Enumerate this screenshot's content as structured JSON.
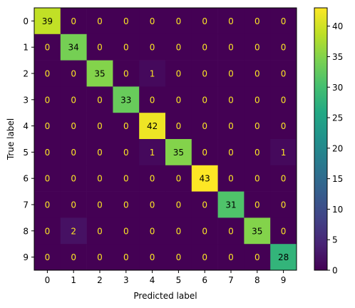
{
  "chart_data": {
    "type": "heatmap",
    "title": "",
    "xlabel": "Predicted label",
    "ylabel": "True label",
    "x_categories": [
      "0",
      "1",
      "2",
      "3",
      "4",
      "5",
      "6",
      "7",
      "8",
      "9"
    ],
    "y_categories": [
      "0",
      "1",
      "2",
      "3",
      "4",
      "5",
      "6",
      "7",
      "8",
      "9"
    ],
    "values": [
      [
        39,
        0,
        0,
        0,
        0,
        0,
        0,
        0,
        0,
        0
      ],
      [
        0,
        34,
        0,
        0,
        0,
        0,
        0,
        0,
        0,
        0
      ],
      [
        0,
        0,
        35,
        0,
        1,
        0,
        0,
        0,
        0,
        0
      ],
      [
        0,
        0,
        0,
        33,
        0,
        0,
        0,
        0,
        0,
        0
      ],
      [
        0,
        0,
        0,
        0,
        42,
        0,
        0,
        0,
        0,
        0
      ],
      [
        0,
        0,
        0,
        0,
        1,
        35,
        0,
        0,
        0,
        1
      ],
      [
        0,
        0,
        0,
        0,
        0,
        0,
        43,
        0,
        0,
        0
      ],
      [
        0,
        0,
        0,
        0,
        0,
        0,
        0,
        31,
        0,
        0
      ],
      [
        0,
        2,
        0,
        0,
        0,
        0,
        0,
        0,
        35,
        0
      ],
      [
        0,
        0,
        0,
        0,
        0,
        0,
        0,
        0,
        0,
        28
      ]
    ],
    "colormap": "viridis",
    "colorbar": {
      "range": [
        0,
        43
      ],
      "ticks": [
        0,
        5,
        10,
        15,
        20,
        25,
        30,
        35,
        40
      ]
    },
    "text_color_low": "#fde725",
    "text_color_high": "#000000",
    "grid": false
  }
}
